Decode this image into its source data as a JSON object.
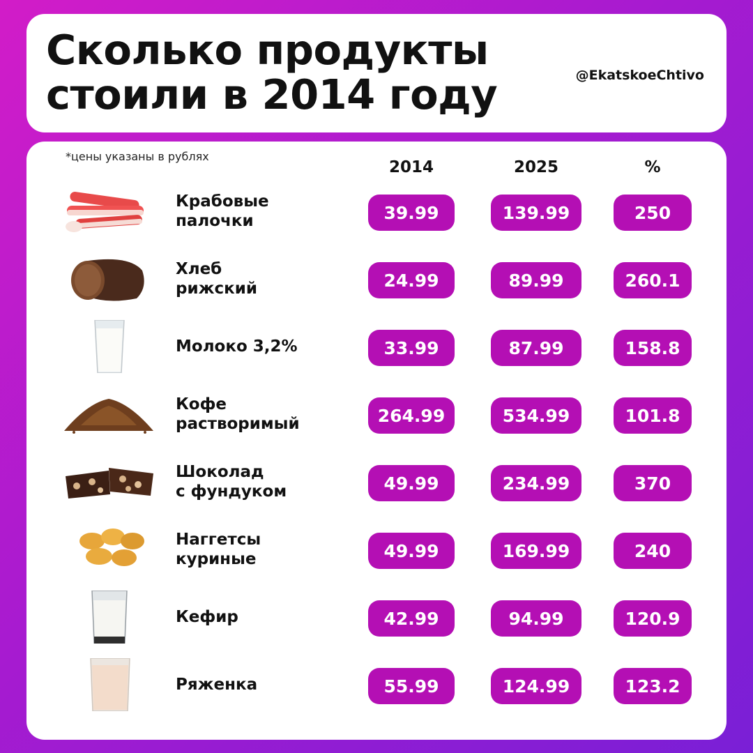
{
  "header": {
    "title_line1": "Сколько продукты",
    "title_line2": "стоили в 2014 году",
    "handle": "@EkatskoeChtivo"
  },
  "table": {
    "note": "*цены указаны в рублях",
    "columns": [
      "2014",
      "2025",
      "%"
    ],
    "rows": [
      {
        "name": "Крабовые\nпалочки",
        "icon": "crab-sticks-icon",
        "p2014": "39.99",
        "p2025": "139.99",
        "pct": "250"
      },
      {
        "name": "Хлеб\nрижский",
        "icon": "bread-icon",
        "p2014": "24.99",
        "p2025": "89.99",
        "pct": "260.1"
      },
      {
        "name": "Молоко 3,2%",
        "icon": "milk-glass-icon",
        "p2014": "33.99",
        "p2025": "87.99",
        "pct": "158.8"
      },
      {
        "name": "Кофе\nрастворимый",
        "icon": "coffee-granules-icon",
        "p2014": "264.99",
        "p2025": "534.99",
        "pct": "101.8"
      },
      {
        "name": "Шоколад\nс фундуком",
        "icon": "chocolate-icon",
        "p2014": "49.99",
        "p2025": "234.99",
        "pct": "370"
      },
      {
        "name": "Наггетсы\nкуриные",
        "icon": "nuggets-icon",
        "p2014": "49.99",
        "p2025": "169.99",
        "pct": "240"
      },
      {
        "name": "Кефир",
        "icon": "kefir-glass-icon",
        "p2014": "42.99",
        "p2025": "94.99",
        "pct": "120.9"
      },
      {
        "name": "Ряженка",
        "icon": "ryazhenka-glass-icon",
        "p2014": "55.99",
        "p2025": "124.99",
        "pct": "123.2"
      }
    ]
  },
  "colors": {
    "pill": "#b40fb4",
    "background_start": "#d21cc8",
    "background_end": "#7a1fd6"
  }
}
